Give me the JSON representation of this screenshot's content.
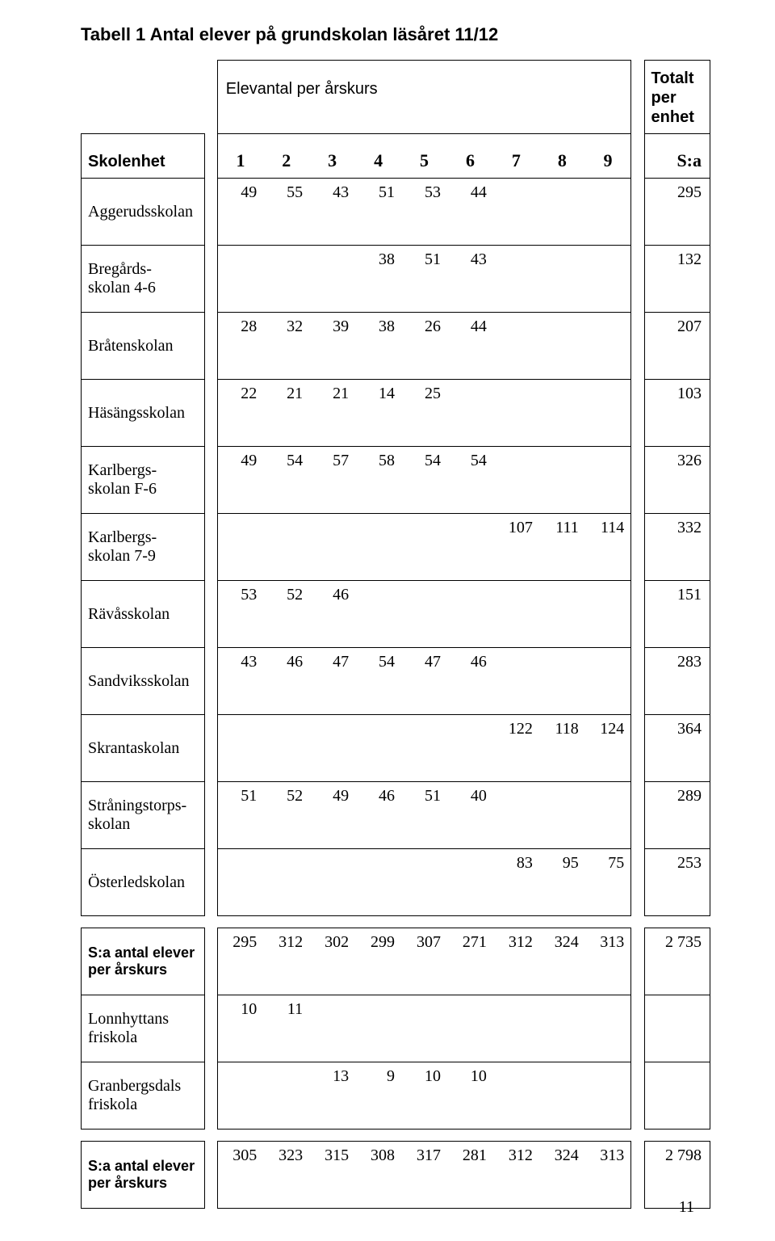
{
  "title": "Tabell 1 Antal elever på grundskolan läsåret 11/12",
  "header": {
    "elevantal": "Elevantal per årskurs",
    "totalt_line1": "Totalt per",
    "totalt_line2": "enhet",
    "skolenhet": "Skolenhet",
    "cols": [
      "1",
      "2",
      "3",
      "4",
      "5",
      "6",
      "7",
      "8",
      "9"
    ],
    "sa": "S:a"
  },
  "rows": [
    {
      "label": "Aggerudsskolan",
      "bold": false,
      "cells": [
        "49",
        "55",
        "43",
        "51",
        "53",
        "44",
        "",
        "",
        ""
      ],
      "sa": "295"
    },
    {
      "label": "Bregårds-\nskolan 4-6",
      "bold": false,
      "cells": [
        "",
        "",
        "",
        "38",
        "51",
        "43",
        "",
        "",
        ""
      ],
      "sa": "132"
    },
    {
      "label": "Bråtenskolan",
      "bold": false,
      "cells": [
        "28",
        "32",
        "39",
        "38",
        "26",
        "44",
        "",
        "",
        ""
      ],
      "sa": "207"
    },
    {
      "label": "Häsängsskolan",
      "bold": false,
      "cells": [
        "22",
        "21",
        "21",
        "14",
        "25",
        "",
        "",
        "",
        ""
      ],
      "sa": "103"
    },
    {
      "label": "Karlbergs-\nskolan F-6",
      "bold": false,
      "cells": [
        "49",
        "54",
        "57",
        "58",
        "54",
        "54",
        "",
        "",
        ""
      ],
      "sa": "326"
    },
    {
      "label": "Karlbergs-\nskolan 7-9",
      "bold": false,
      "cells": [
        "",
        "",
        "",
        "",
        "",
        "",
        "107",
        "111",
        "114"
      ],
      "sa": "332"
    },
    {
      "label": "Rävåsskolan",
      "bold": false,
      "cells": [
        "53",
        "52",
        "46",
        "",
        "",
        "",
        "",
        "",
        ""
      ],
      "sa": "151"
    },
    {
      "label": "Sandviksskolan",
      "bold": false,
      "cells": [
        "43",
        "46",
        "47",
        "54",
        "47",
        "46",
        "",
        "",
        ""
      ],
      "sa": "283"
    },
    {
      "label": "Skrantaskolan",
      "bold": false,
      "cells": [
        "",
        "",
        "",
        "",
        "",
        "",
        "122",
        "118",
        "124"
      ],
      "sa": "364"
    },
    {
      "label": "Stråningstorps-\nskolan",
      "bold": false,
      "cells": [
        "51",
        "52",
        "49",
        "46",
        "51",
        "40",
        "",
        "",
        ""
      ],
      "sa": "289"
    },
    {
      "label": "Österledskolan",
      "bold": false,
      "cells": [
        "",
        "",
        "",
        "",
        "",
        "",
        "83",
        "95",
        "75"
      ],
      "sa": "253"
    }
  ],
  "sum1": {
    "label": "S:a antal elever\nper årskurs",
    "bold": true,
    "cells": [
      "295",
      "312",
      "302",
      "299",
      "307",
      "271",
      "312",
      "324",
      "313"
    ],
    "sa": "2 735"
  },
  "extras": [
    {
      "label": "Lonnhyttans\nfriskola",
      "bold": false,
      "cells": [
        "10",
        "11",
        "",
        "",
        "",
        "",
        "",
        "",
        ""
      ],
      "sa": ""
    },
    {
      "label": "Granbergsdals\nfriskola",
      "bold": false,
      "cells": [
        "",
        "",
        "13",
        "9",
        "10",
        "10",
        "",
        "",
        ""
      ],
      "sa": ""
    }
  ],
  "sum2": {
    "label": "S:a antal elever\nper årskurs",
    "bold": true,
    "cells": [
      "305",
      "323",
      "315",
      "308",
      "317",
      "281",
      "312",
      "324",
      "313"
    ],
    "sa": "2 798"
  },
  "pagenum": "11",
  "style": {
    "title_fontsize": 22,
    "cell_fontsize": 20,
    "border_color": "#000000",
    "background_color": "#ffffff",
    "font_serif": "Times New Roman",
    "font_sans": "Arial"
  }
}
